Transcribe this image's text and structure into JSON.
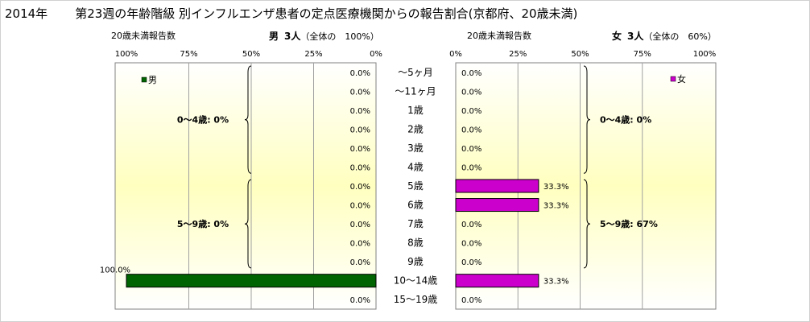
{
  "title": {
    "year": "2014年",
    "text": "第23週の年齢階級 別インフルエンザ患者の定点医療機関からの報告割合(京都府、20歳未満)"
  },
  "left_panel": {
    "count_label": "20歳未満報告数",
    "sex": "男",
    "count": "3人",
    "share": "（全体の　100%）",
    "legend": "男",
    "color": "#006400",
    "ticks": [
      "100%",
      "75%",
      "50%",
      "25%",
      "0%"
    ],
    "groups": [
      {
        "label": "0〜4歳: 0%"
      },
      {
        "label": "5〜9歳: 0%"
      }
    ]
  },
  "right_panel": {
    "count_label": "20歳未満報告数",
    "sex": "女",
    "count": "3人",
    "share": "（全体の　60%）",
    "legend": "女",
    "color": "#cc00cc",
    "ticks": [
      "0%",
      "25%",
      "50%",
      "75%",
      "100%"
    ],
    "groups": [
      {
        "label": "0〜4歳: 0%"
      },
      {
        "label": "5〜9歳: 67%"
      }
    ]
  },
  "chart_data": [
    {
      "type": "bar",
      "orientation": "horizontal",
      "direction": "right-to-left",
      "series": [
        {
          "name": "男",
          "values": [
            0,
            0,
            0,
            0,
            0,
            0,
            0,
            0,
            0,
            0,
            0,
            100,
            0
          ]
        }
      ],
      "labels": [
        "0.0%",
        "0.0%",
        "0.0%",
        "0.0%",
        "0.0%",
        "0.0%",
        "0.0%",
        "0.0%",
        "0.0%",
        "0.0%",
        "0.0%",
        "100.0%",
        "0.0%"
      ],
      "categories": [
        "〜5ヶ月",
        "〜11ヶ月",
        "1歳",
        "2歳",
        "3歳",
        "4歳",
        "5歳",
        "6歳",
        "7歳",
        "8歳",
        "9歳",
        "10〜14歳",
        "15〜19歳"
      ],
      "xlim": [
        0,
        100
      ],
      "legend_position": "top-left"
    },
    {
      "type": "bar",
      "orientation": "horizontal",
      "direction": "left-to-right",
      "series": [
        {
          "name": "女",
          "values": [
            0,
            0,
            0,
            0,
            0,
            0,
            33.3,
            33.3,
            0,
            0,
            0,
            33.3,
            0
          ]
        }
      ],
      "labels": [
        "0.0%",
        "0.0%",
        "0.0%",
        "0.0%",
        "0.0%",
        "0.0%",
        "33.3%",
        "33.3%",
        "0.0%",
        "0.0%",
        "0.0%",
        "33.3%",
        "0.0%"
      ],
      "categories": [
        "〜5ヶ月",
        "〜11ヶ月",
        "1歳",
        "2歳",
        "3歳",
        "4歳",
        "5歳",
        "6歳",
        "7歳",
        "8歳",
        "9歳",
        "10〜14歳",
        "15〜19歳"
      ],
      "xlim": [
        0,
        100
      ],
      "legend_position": "top-right"
    }
  ]
}
